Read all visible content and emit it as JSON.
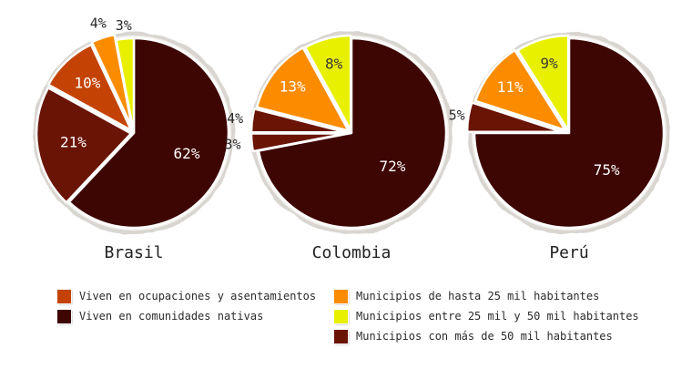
{
  "colors": {
    "orange": "#fb8c00",
    "yellow": "#e8f000",
    "rust": "#c44304",
    "brown": "#3d0603",
    "red_brown": "#6a1406"
  },
  "legend": {
    "left": [
      {
        "label": "Viven en ocupaciones y asentamientos",
        "color": "#c44304"
      },
      {
        "label": "Viven en comunidades nativas",
        "color": "#3d0603"
      }
    ],
    "right": [
      {
        "label": "Municipios de hasta 25 mil habitantes",
        "color": "#fb8c00"
      },
      {
        "label": "Municipios entre 25 mil y 50 mil habitantes",
        "color": "#e8f000"
      },
      {
        "label": "Municipios con más de 50 mil habitantes",
        "color": "#6a1406"
      }
    ]
  },
  "chart_data": [
    {
      "type": "pie",
      "title": "Brasil",
      "slices": [
        {
          "label": "62%",
          "value": 62,
          "color": "#3d0603"
        },
        {
          "label": "21%",
          "value": 21,
          "color": "#6a1406"
        },
        {
          "label": "10%",
          "value": 10,
          "color": "#c44304"
        },
        {
          "label": "4%",
          "value": 4,
          "color": "#fb8c00"
        },
        {
          "label": "3%",
          "value": 3,
          "color": "#e8f000"
        }
      ]
    },
    {
      "type": "pie",
      "title": "Colombia",
      "slices": [
        {
          "label": "72%",
          "value": 72,
          "color": "#3d0603"
        },
        {
          "label": "3%",
          "value": 3,
          "color": "#6a1406"
        },
        {
          "label": "4%",
          "value": 4,
          "color": "#6a1406"
        },
        {
          "label": "13%",
          "value": 13,
          "color": "#fb8c00"
        },
        {
          "label": "8%",
          "value": 8,
          "color": "#e8f000"
        }
      ]
    },
    {
      "type": "pie",
      "title": "Perú",
      "slices": [
        {
          "label": "75%",
          "value": 75,
          "color": "#3d0603"
        },
        {
          "label": "5%",
          "value": 5,
          "color": "#6a1406"
        },
        {
          "label": "11%",
          "value": 11,
          "color": "#fb8c00"
        },
        {
          "label": "9%",
          "value": 9,
          "color": "#e8f000"
        }
      ]
    }
  ]
}
